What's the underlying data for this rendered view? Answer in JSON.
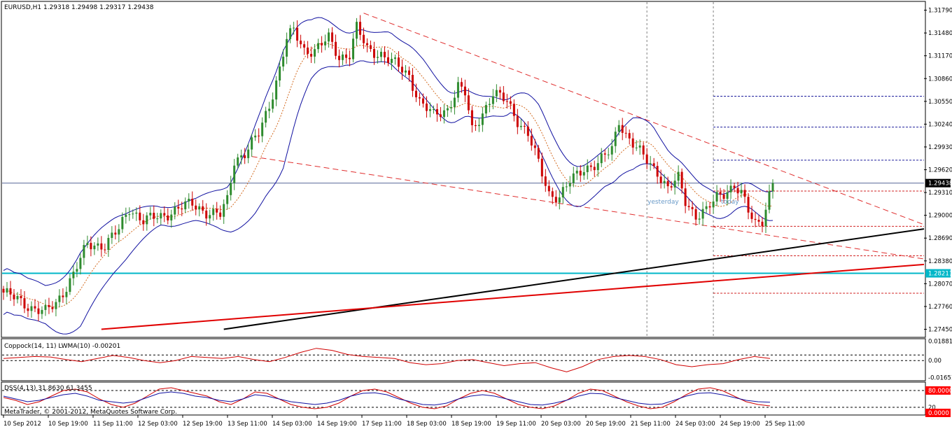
{
  "header": {
    "symbol_line": "EURUSD,H1  1.29318 1.29498 1.29317 1.29438"
  },
  "colors": {
    "bull": "#2e8b2e",
    "bear": "#cc0000",
    "band": "#1010a0",
    "ma": "#d2691e",
    "channel": "#e03030",
    "price_line": "#5a6a9a",
    "cyan": "#00b7c8",
    "black_trend": "#000000",
    "red_trend": "#e00000",
    "pivot_blue": "#1a1a9a",
    "pivot_red": "#d02020",
    "sep": "#808080",
    "osc_red": "#d00000",
    "osc_blue": "#1010a0",
    "highlight_bg": "#000000",
    "highlight_text": "#ffffff",
    "cyan_label_bg": "#00b7c8",
    "red_label_bg": "#ff0000"
  },
  "chart_data": [
    {
      "type": "candlestick",
      "title": "EURUSD,H1  1.29318 1.29498 1.29317 1.29438",
      "ylim": [
        1.2735,
        1.319
      ],
      "y_ticks": [
        "1.31790",
        "1.31480",
        "1.31170",
        "1.30860",
        "1.30550",
        "1.30240",
        "1.29930",
        "1.29620",
        "1.29310",
        "1.29000",
        "1.28690",
        "1.28380",
        "1.28070",
        "1.27760",
        "1.27450"
      ],
      "current_price": "1.29438",
      "cyan_level": "1.28211",
      "x_labels": [
        "10 Sep 2012",
        "10 Sep 19:00",
        "11 Sep 11:00",
        "12 Sep 03:00",
        "12 Sep 19:00",
        "13 Sep 11:00",
        "14 Sep 03:00",
        "14 Sep 19:00",
        "17 Sep 11:00",
        "18 Sep 03:00",
        "18 Sep 19:00",
        "19 Sep 11:00",
        "20 Sep 03:00",
        "20 Sep 19:00",
        "21 Sep 11:00",
        "24 Sep 03:00",
        "24 Sep 19:00",
        "25 Sep 11:00"
      ],
      "annotations": [
        "yesterday",
        "today"
      ],
      "price_path": [
        [
          0,
          1.2795
        ],
        [
          4,
          1.2785
        ],
        [
          8,
          1.2775
        ],
        [
          12,
          1.2768
        ],
        [
          15,
          1.278
        ],
        [
          20,
          1.282
        ],
        [
          24,
          1.286
        ],
        [
          29,
          1.286
        ],
        [
          33,
          1.288
        ],
        [
          36,
          1.291
        ],
        [
          40,
          1.2893
        ],
        [
          45,
          1.2898
        ],
        [
          50,
          1.291
        ],
        [
          54,
          1.2915
        ],
        [
          58,
          1.2905
        ],
        [
          62,
          1.29
        ],
        [
          64,
          1.292
        ],
        [
          66,
          1.2975
        ],
        [
          69,
          1.2985
        ],
        [
          73,
          1.301
        ],
        [
          76,
          1.305
        ],
        [
          79,
          1.31
        ],
        [
          81,
          1.314
        ],
        [
          83,
          1.315
        ],
        [
          86,
          1.3125
        ],
        [
          89,
          1.3125
        ],
        [
          93,
          1.314
        ],
        [
          96,
          1.3115
        ],
        [
          99,
          1.312
        ],
        [
          101,
          1.3155
        ],
        [
          104,
          1.3125
        ],
        [
          108,
          1.312
        ],
        [
          112,
          1.3105
        ],
        [
          116,
          1.309
        ],
        [
          119,
          1.3055
        ],
        [
          123,
          1.3035
        ],
        [
          127,
          1.3045
        ],
        [
          130,
          1.3075
        ],
        [
          132,
          1.3065
        ],
        [
          134,
          1.3015
        ],
        [
          137,
          1.304
        ],
        [
          140,
          1.3065
        ],
        [
          144,
          1.3055
        ],
        [
          147,
          1.303
        ],
        [
          150,
          1.301
        ],
        [
          153,
          1.297
        ],
        [
          156,
          1.293
        ],
        [
          159,
          1.2925
        ],
        [
          162,
          1.2945
        ],
        [
          166,
          1.2965
        ],
        [
          170,
          1.297
        ],
        [
          174,
          1.299
        ],
        [
          176,
          1.303
        ],
        [
          178,
          1.301
        ],
        [
          181,
          1.299
        ],
        [
          184,
          1.2975
        ],
        [
          187,
          1.296
        ],
        [
          190,
          1.2935
        ],
        [
          193,
          1.295
        ],
        [
          195,
          1.292
        ],
        [
          198,
          1.29
        ],
        [
          201,
          1.2905
        ],
        [
          204,
          1.2925
        ],
        [
          207,
          1.2935
        ],
        [
          209,
          1.294
        ],
        [
          211,
          1.2928
        ],
        [
          213,
          1.2905
        ],
        [
          215,
          1.289
        ],
        [
          217,
          1.2895
        ],
        [
          220,
          1.2944
        ]
      ],
      "bollinger_halfwidth": [
        [
          0,
          0.003
        ],
        [
          12,
          0.0026
        ],
        [
          22,
          0.005
        ],
        [
          33,
          0.0035
        ],
        [
          45,
          0.0012
        ],
        [
          55,
          0.0015
        ],
        [
          64,
          0.003
        ],
        [
          72,
          0.006
        ],
        [
          80,
          0.008
        ],
        [
          88,
          0.004
        ],
        [
          98,
          0.0022
        ],
        [
          108,
          0.002
        ],
        [
          120,
          0.0025
        ],
        [
          132,
          0.0018
        ],
        [
          145,
          0.001
        ],
        [
          153,
          0.003
        ],
        [
          162,
          0.0028
        ],
        [
          172,
          0.0025
        ],
        [
          180,
          0.0035
        ],
        [
          190,
          0.002
        ],
        [
          200,
          0.0018
        ],
        [
          210,
          0.0015
        ],
        [
          220,
          0.002
        ]
      ],
      "candle_count": 221,
      "channel_upper": [
        [
          103,
          1.3175
        ],
        [
          220,
          1.2965
        ]
      ],
      "channel_lower": [
        [
          71,
          1.298
        ],
        [
          220,
          1.2872
        ]
      ],
      "black_trend": [
        [
          63,
          1.2745
        ],
        [
          220,
          1.2852
        ]
      ],
      "red_trend": [
        [
          28,
          1.2745
        ],
        [
          220,
          1.2817
        ]
      ],
      "pivot_blue_levels": [
        1.3062,
        1.302,
        1.2975
      ],
      "pivot_red_levels": [
        1.2933,
        1.2885,
        1.2845,
        1.2794
      ],
      "vertical_separators": [
        184,
        203
      ]
    },
    {
      "type": "line",
      "title": "Coppock(14, 11) LWMA(10) -0.00201",
      "y_ticks": [
        "0.01881",
        "0.00",
        "-0.01651"
      ],
      "ylim": [
        -0.019,
        0.02
      ],
      "levels": [
        0.0,
        0.0055
      ],
      "series": [
        {
          "name": "Coppock",
          "values": [
            0.002,
            0.003,
            0.004,
            0.0035,
            0.001,
            -0.001,
            0.002,
            0.005,
            0.003,
            0.0,
            -0.002,
            0.0,
            0.004,
            0.003,
            0.002,
            0.004,
            0.001,
            -0.001,
            0.003,
            0.008,
            0.012,
            0.01,
            0.006,
            0.004,
            0.003,
            0.002,
            -0.002,
            -0.004,
            -0.003,
            0.0,
            0.001,
            -0.002,
            -0.005,
            -0.003,
            -0.002,
            -0.007,
            -0.011,
            -0.006,
            0.001,
            0.004,
            0.005,
            0.004,
            0.001,
            -0.004,
            -0.006,
            -0.004,
            -0.003,
            0.001,
            0.004,
            0.002
          ]
        }
      ]
    },
    {
      "type": "line",
      "title": "DSS(4,13) 31.8630 61.3455",
      "y_ticks": [
        "80.0000",
        "20",
        "0.0000"
      ],
      "ylim": [
        -5,
        105
      ],
      "levels": [
        80,
        20
      ],
      "series": [
        {
          "name": "DSS",
          "values": [
            55,
            45,
            30,
            40,
            60,
            80,
            85,
            75,
            50,
            30,
            20,
            35,
            60,
            85,
            90,
            80,
            70,
            60,
            40,
            30,
            50,
            75,
            70,
            50,
            30,
            20,
            15,
            20,
            35,
            60,
            80,
            85,
            75,
            55,
            35,
            20,
            15,
            25,
            50,
            70,
            80,
            70,
            50,
            30,
            20,
            15,
            25,
            45,
            70,
            85,
            80,
            60,
            40,
            25,
            15,
            20,
            40,
            65,
            85,
            90,
            80,
            60,
            40,
            30,
            25
          ]
        },
        {
          "name": "Signal",
          "values": [
            60,
            50,
            40,
            45,
            55,
            65,
            70,
            60,
            45,
            40,
            35,
            40,
            55,
            70,
            75,
            70,
            60,
            55,
            45,
            40,
            50,
            65,
            60,
            50,
            40,
            35,
            30,
            35,
            45,
            60,
            70,
            72,
            65,
            50,
            40,
            30,
            28,
            35,
            50,
            60,
            65,
            60,
            50,
            40,
            30,
            28,
            35,
            45,
            60,
            70,
            68,
            55,
            45,
            35,
            30,
            32,
            45,
            60,
            70,
            72,
            65,
            55,
            45,
            40,
            38
          ]
        }
      ]
    }
  ],
  "footer": {
    "copyright": "MetaTrader, © 2001-2012, MetaQuotes Software Corp."
  }
}
